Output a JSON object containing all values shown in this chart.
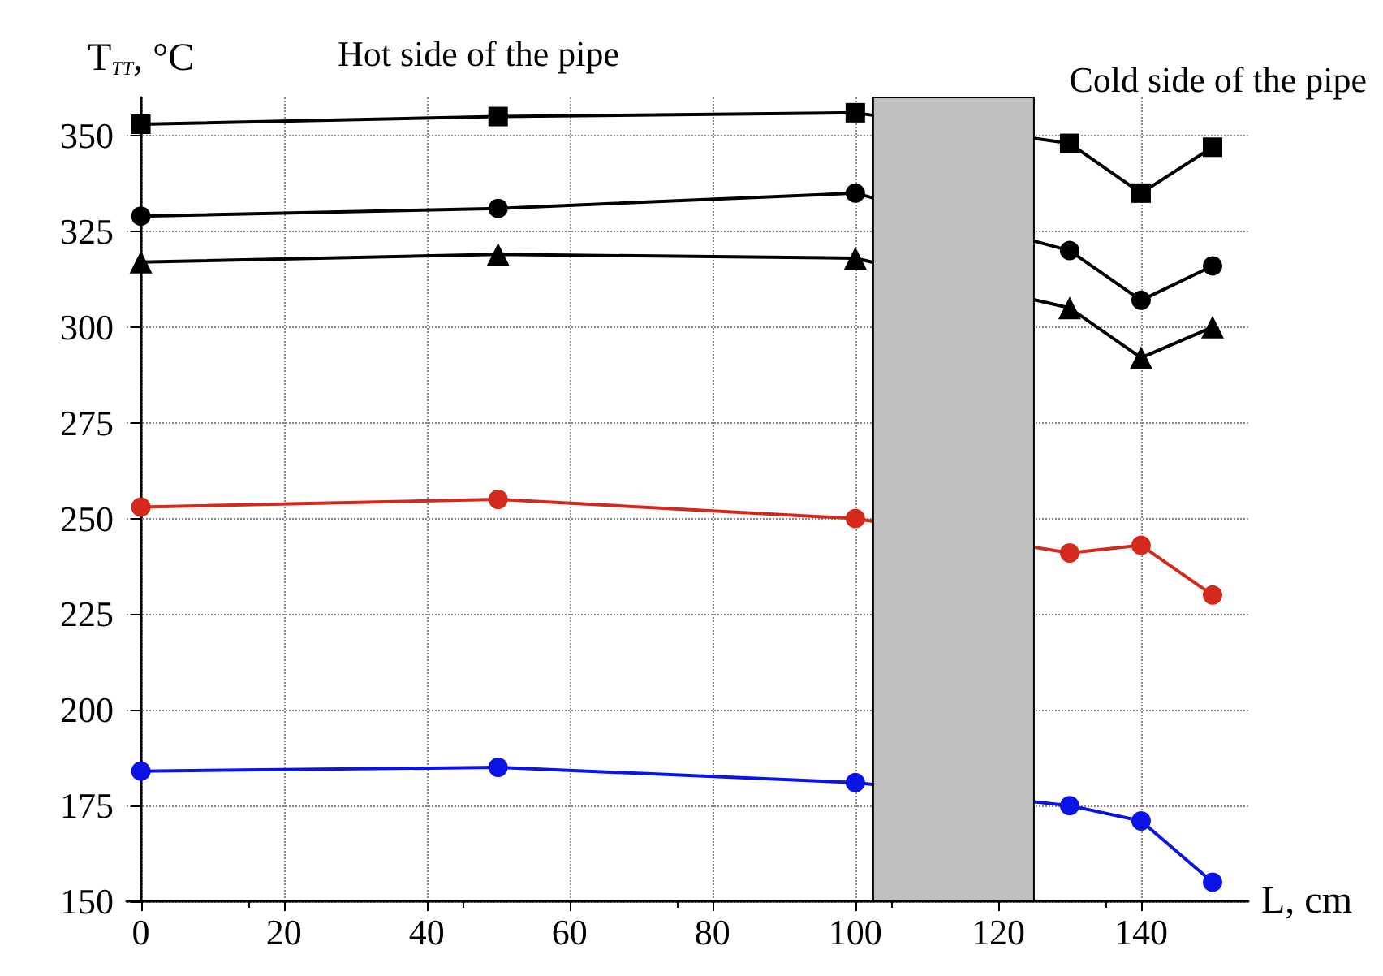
{
  "chart_data": {
    "type": "line",
    "xlabel": "L, cm",
    "ylabel": "T$_{TT}$, °C",
    "x": [
      0,
      50,
      100,
      130,
      140,
      150
    ],
    "series": [
      {
        "color": "#000000",
        "marker": "square",
        "values": [
          353,
          355,
          356,
          348,
          335,
          347
        ]
      },
      {
        "color": "#000000",
        "marker": "circle",
        "values": [
          329,
          331,
          335,
          320,
          307,
          316
        ]
      },
      {
        "color": "#000000",
        "marker": "triangle",
        "values": [
          317,
          319,
          318,
          305,
          292,
          300
        ]
      },
      {
        "color": "#d42a1e",
        "marker": "circle",
        "values": [
          253,
          255,
          250,
          241,
          243,
          230
        ]
      },
      {
        "color": "#0a14e6",
        "marker": "circle",
        "values": [
          184,
          185,
          181,
          175,
          171,
          155
        ]
      }
    ],
    "xlim": [
      -2,
      155
    ],
    "xticks": [
      0,
      20,
      40,
      60,
      80,
      100,
      120,
      140
    ],
    "ylim": [
      150,
      360
    ],
    "yticks": [
      150,
      175,
      200,
      225,
      250,
      275,
      300,
      325,
      350
    ],
    "grid": true,
    "line_style": "solid",
    "bands": [
      {
        "axis": "x",
        "from": 102.5,
        "to": 125,
        "color": "#c0c0c0"
      }
    ],
    "annotations": [
      "Hot side of the pipe",
      "Cold side of the pipe"
    ]
  }
}
